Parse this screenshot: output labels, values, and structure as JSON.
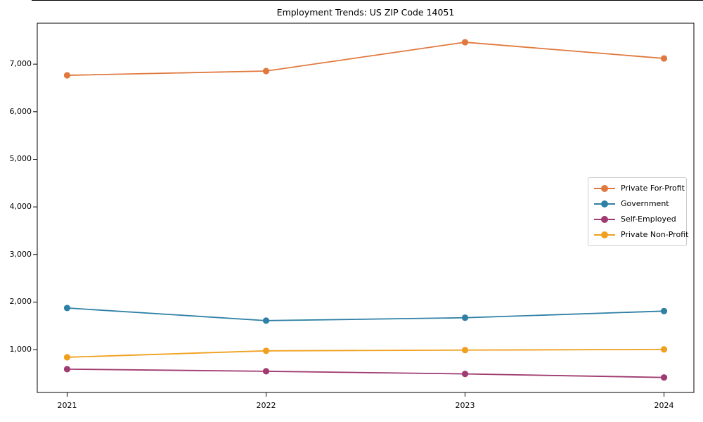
{
  "chart_data": {
    "type": "line",
    "title": "Employment Trends: US ZIP Code 14051",
    "xlabel": "",
    "ylabel": "",
    "grid": false,
    "legend_position": "center-right",
    "categories": [
      "2021",
      "2022",
      "2023",
      "2024"
    ],
    "x_values": [
      2021,
      2022,
      2023,
      2024
    ],
    "xlim": [
      2020.85,
      2024.15
    ],
    "ylim": [
      100,
      7860
    ],
    "yticks": [
      {
        "value": 1000,
        "label": "1,000"
      },
      {
        "value": 2000,
        "label": "2,000"
      },
      {
        "value": 3000,
        "label": "3,000"
      },
      {
        "value": 4000,
        "label": "4,000"
      },
      {
        "value": 5000,
        "label": "5,000"
      },
      {
        "value": 6000,
        "label": "6,000"
      },
      {
        "value": 7000,
        "label": "7,000"
      }
    ],
    "series": [
      {
        "name": "Private For-Profit",
        "color": "#E0793E",
        "values": [
          6765,
          6855,
          7460,
          7120
        ]
      },
      {
        "name": "Government",
        "color": "#2E80A5",
        "values": [
          1875,
          1610,
          1670,
          1810
        ]
      },
      {
        "name": "Self-Employed",
        "color": "#A03A70",
        "values": [
          590,
          545,
          490,
          415
        ]
      },
      {
        "name": "Private Non-Profit",
        "color": "#F0A01E",
        "values": [
          840,
          975,
          990,
          1005
        ]
      }
    ],
    "axis_color": "#000000",
    "legend_border_color": "#cccccc"
  }
}
